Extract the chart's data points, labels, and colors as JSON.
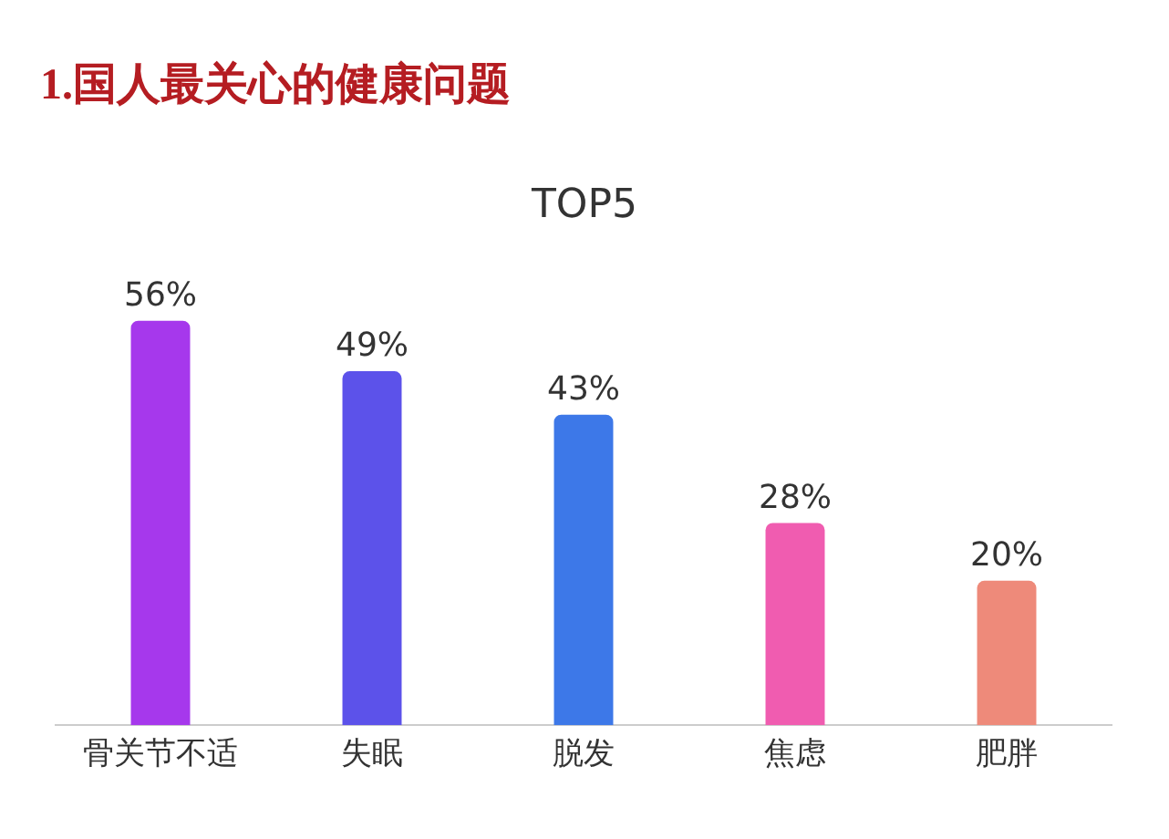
{
  "chart_data": {
    "type": "bar",
    "title": "1.国人最关心的健康问题",
    "subtitle": "TOP5",
    "categories": [
      "骨关节不适",
      "失眠",
      "脱发",
      "焦虑",
      "肥胖"
    ],
    "values": [
      56,
      49,
      43,
      28,
      20
    ],
    "colors": [
      "#a638ec",
      "#5c52ea",
      "#3d78e8",
      "#f05cb0",
      "#ee8a7a"
    ],
    "value_labels": [
      "56%",
      "49%",
      "43%",
      "28%",
      "20%"
    ],
    "grid": false,
    "legend": false
  }
}
